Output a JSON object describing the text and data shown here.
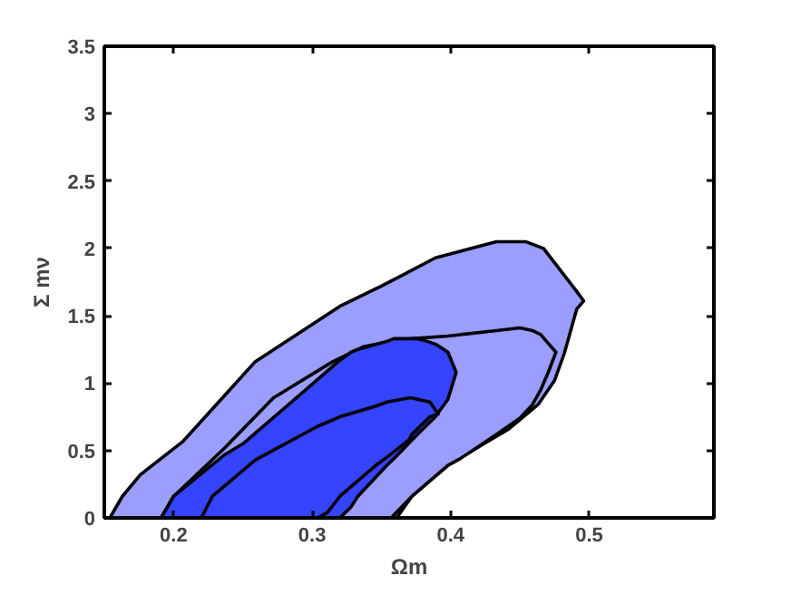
{
  "chart_data": {
    "type": "area",
    "xlabel": "Ωm",
    "ylabel": "Σ mν",
    "series": [
      {
        "color": "#9b9eff",
        "x": [
          0.154,
          0.163,
          0.176,
          0.207,
          0.259,
          0.32,
          0.35,
          0.363,
          0.389,
          0.415,
          0.433,
          0.454,
          0.467,
          0.476,
          0.491,
          0.496,
          0.491,
          0.482,
          0.475,
          0.463,
          0.442,
          0.424,
          0.398,
          0.372,
          0.361
        ],
        "values": [
          0,
          0.16,
          0.32,
          0.57,
          1.16,
          1.57,
          1.72,
          1.79,
          1.93,
          2.0,
          2.05,
          2.05,
          2.0,
          1.88,
          1.68,
          1.61,
          1.55,
          1.22,
          1.02,
          0.84,
          0.66,
          0.55,
          0.39,
          0.16,
          0
        ]
      },
      {
        "color": "#9b9eff",
        "x": [
          0.191,
          0.2,
          0.237,
          0.272,
          0.315,
          0.337,
          0.357,
          0.372,
          0.398,
          0.407,
          0.433,
          0.45,
          0.459,
          0.465,
          0.47,
          0.476,
          0.47,
          0.465,
          0.459,
          0.45,
          0.433,
          0.407,
          0.398,
          0.372,
          0.357
        ],
        "values": [
          0,
          0.16,
          0.52,
          0.89,
          1.16,
          1.27,
          1.31,
          1.33,
          1.35,
          1.36,
          1.39,
          1.41,
          1.39,
          1.36,
          1.3,
          1.23,
          1.07,
          0.95,
          0.84,
          0.74,
          0.62,
          0.44,
          0.39,
          0.16,
          0
        ]
      },
      {
        "color": "#3444ff",
        "x": [
          0.191,
          0.2,
          0.237,
          0.25,
          0.293,
          0.32,
          0.328,
          0.333,
          0.354,
          0.359,
          0.376,
          0.38,
          0.389,
          0.398,
          0.404,
          0.398,
          0.389,
          0.38,
          0.376,
          0.359,
          0.354,
          0.333,
          0.328,
          0.32
        ],
        "values": [
          0,
          0.16,
          0.47,
          0.55,
          0.93,
          1.17,
          1.23,
          1.25,
          1.31,
          1.33,
          1.33,
          1.32,
          1.29,
          1.23,
          1.08,
          0.88,
          0.75,
          0.66,
          0.62,
          0.44,
          0.39,
          0.16,
          0.08,
          0
        ]
      },
      {
        "color": "#3444ff",
        "x": [
          0.22,
          0.228,
          0.259,
          0.304,
          0.311,
          0.32,
          0.346,
          0.354,
          0.37,
          0.372,
          0.385,
          0.391,
          0.385,
          0.372,
          0.37,
          0.354,
          0.346,
          0.32,
          0.311,
          0.304
        ],
        "values": [
          0,
          0.16,
          0.43,
          0.68,
          0.71,
          0.75,
          0.83,
          0.86,
          0.89,
          0.89,
          0.86,
          0.77,
          0.75,
          0.62,
          0.58,
          0.45,
          0.39,
          0.16,
          0.04,
          0
        ]
      }
    ],
    "xlim": [
      0.15,
      0.59
    ],
    "xticks": [
      0.2,
      0.3,
      0.4,
      0.5
    ],
    "ylim": [
      0,
      3.5
    ],
    "yticks": [
      0,
      0.5,
      1,
      1.5,
      2,
      2.5,
      3,
      3.5
    ],
    "grid": false
  }
}
